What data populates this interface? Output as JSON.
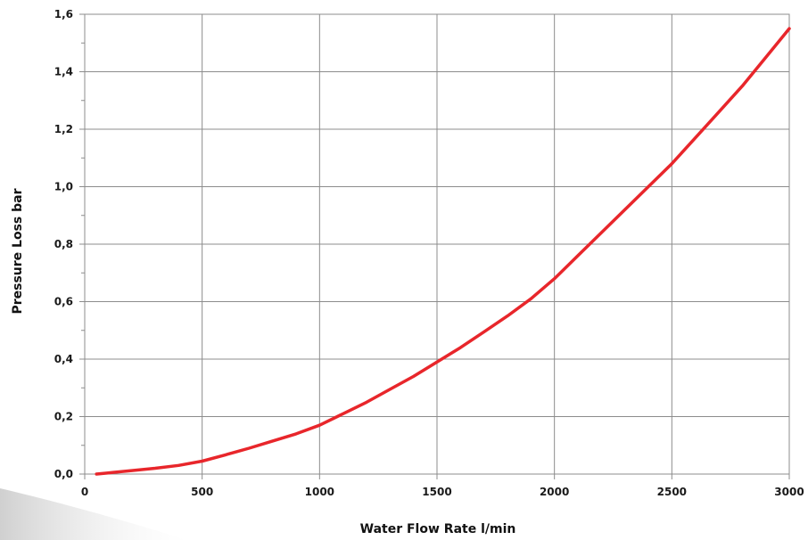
{
  "chart_data": {
    "type": "line",
    "title": "",
    "xlabel": "Water Flow Rate l/min",
    "ylabel": "Pressure Loss bar",
    "xlim": [
      0,
      3000
    ],
    "ylim": [
      0,
      1.6
    ],
    "x_ticks": [
      "0",
      "500",
      "1000",
      "1500",
      "2000",
      "2500",
      "3000"
    ],
    "y_ticks": [
      "0,0",
      "0,2",
      "0,4",
      "0,6",
      "0,8",
      "1,0",
      "1,2",
      "1,4",
      "1,6"
    ],
    "grid": true,
    "legend": "none",
    "series": [
      {
        "color": "#e8262b",
        "x": [
          50,
          100,
          200,
          300,
          400,
          500,
          600,
          700,
          800,
          900,
          1000,
          1100,
          1200,
          1300,
          1400,
          1500,
          1600,
          1700,
          1800,
          1900,
          2000,
          2100,
          2200,
          2300,
          2400,
          2500,
          2600,
          2700,
          2800,
          2900,
          3000
        ],
        "y": [
          0.0,
          0.004,
          0.012,
          0.02,
          0.03,
          0.045,
          0.067,
          0.09,
          0.115,
          0.14,
          0.17,
          0.21,
          0.25,
          0.295,
          0.34,
          0.39,
          0.44,
          0.495,
          0.55,
          0.61,
          0.68,
          0.76,
          0.84,
          0.92,
          1.0,
          1.08,
          1.17,
          1.26,
          1.35,
          1.45,
          1.55
        ]
      }
    ]
  }
}
